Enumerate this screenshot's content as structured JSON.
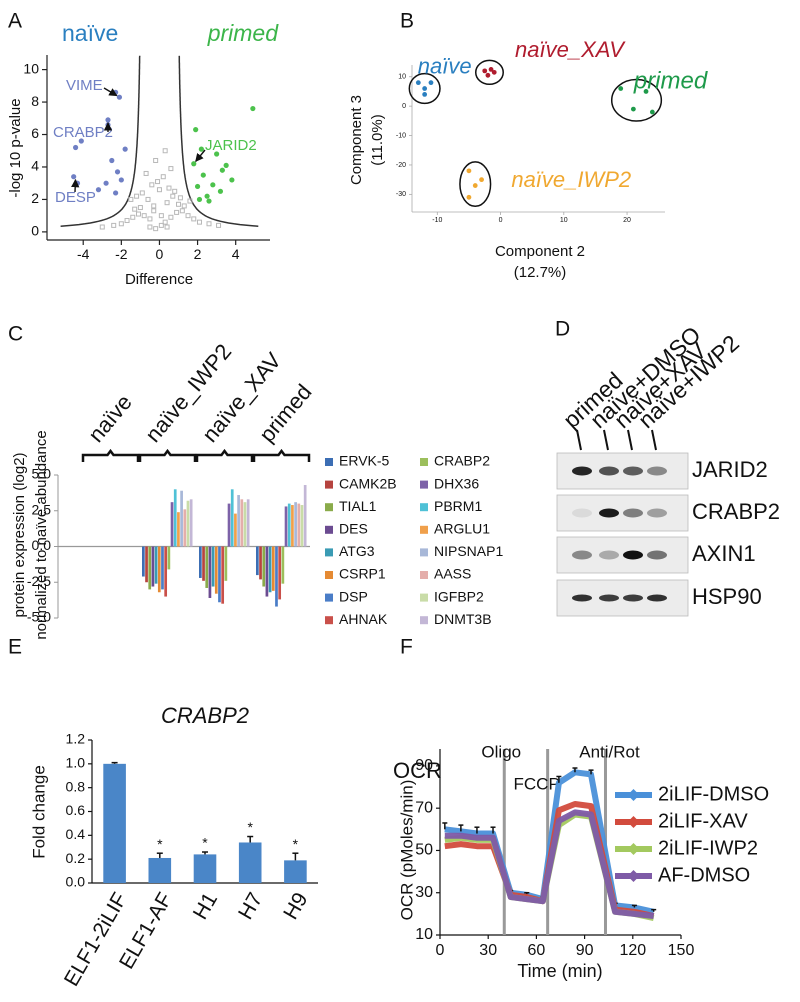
{
  "chart_data": [
    {
      "panel": "A",
      "type": "scatter",
      "group_labels": [
        "naïve",
        "primed"
      ],
      "group_colors": [
        "#2a7fc0",
        "#3cb54a"
      ],
      "xlabel": "Difference",
      "ylabel": "-log 10 p-value",
      "xlim": [
        -5.9,
        5.8
      ],
      "ylim": [
        -0.5,
        10.9
      ],
      "xticks": [
        -4,
        -2,
        0,
        2,
        4
      ],
      "yticks": [
        0,
        2,
        4,
        6,
        8,
        10
      ],
      "series": [
        {
          "color": "#b8b8b8",
          "marker": "open-square",
          "x": [
            -0.2,
            0.1,
            0.3,
            -0.5,
            0.6,
            -0.8,
            0.9,
            -1.1,
            1.2,
            -0.3,
            0.4,
            -0.6,
            0.7,
            -1.0,
            1.0,
            -1.4,
            1.5,
            0.0,
            -0.1,
            0.2,
            -0.4,
            0.5,
            -0.9,
            0.8,
            -1.3,
            1.3,
            -1.7,
            1.8,
            -2.0,
            2.1,
            -0.7,
            0.6,
            -0.2,
            0.3,
            -1.2,
            1.1,
            -2.4,
            2.6,
            -0.5,
            0.4,
            1.6,
            -1.5,
            -3.0,
            3.1,
            0.1,
            -0.3
          ],
          "values": [
            0.2,
            0.4,
            0.6,
            0.8,
            0.9,
            1.0,
            1.2,
            1.1,
            1.3,
            1.6,
            1.8,
            2.0,
            2.2,
            1.5,
            1.7,
            0.9,
            1.0,
            2.6,
            3.1,
            3.4,
            2.9,
            2.7,
            2.4,
            2.5,
            1.4,
            1.6,
            0.7,
            0.8,
            0.5,
            0.6,
            3.6,
            3.9,
            4.4,
            5.0,
            2.2,
            2.1,
            0.4,
            0.5,
            0.3,
            0.3,
            1.9,
            2.0,
            0.3,
            0.4,
            1.0,
            1.3
          ]
        },
        {
          "color": "#6f7fc4",
          "x": [
            -4.5,
            -4.3,
            -4.4,
            -4.1,
            -2.7,
            -2.7,
            -2.3,
            -2.1,
            -2.5,
            -2.2,
            -2.8,
            -2.0,
            -2.3,
            -3.2,
            -1.8
          ],
          "values": [
            3.4,
            3.0,
            5.2,
            5.6,
            6.9,
            6.6,
            8.6,
            8.3,
            4.4,
            3.7,
            3.0,
            3.2,
            2.4,
            2.6,
            5.1
          ]
        },
        {
          "color": "#4cc24c",
          "x": [
            1.8,
            2.0,
            2.3,
            2.5,
            2.8,
            3.0,
            3.2,
            3.5,
            3.8,
            2.2,
            2.6,
            4.9,
            2.1,
            1.9,
            3.3
          ],
          "values": [
            4.2,
            2.8,
            3.5,
            2.2,
            2.9,
            4.8,
            2.5,
            4.1,
            3.2,
            5.1,
            1.9,
            7.6,
            2.0,
            6.3,
            3.8
          ]
        }
      ],
      "annotations": [
        {
          "text": "VIME",
          "x": -2.1,
          "y": 8.3,
          "color": "#6f7fc4"
        },
        {
          "text": "CRABP2",
          "x": -2.7,
          "y": 6.9,
          "color": "#6f7fc4"
        },
        {
          "text": "DESP",
          "x": -4.4,
          "y": 3.4,
          "color": "#6f7fc4"
        },
        {
          "text": "JARID2",
          "x": 1.8,
          "y": 4.2,
          "color": "#4cc24c"
        }
      ]
    },
    {
      "panel": "B",
      "type": "scatter",
      "xlabel": [
        "Component 2",
        "(12.7%)"
      ],
      "ylabel": [
        "Component 3",
        "(11.0%)"
      ],
      "xlim": [
        -14,
        26
      ],
      "ylim": [
        -36,
        14
      ],
      "xticks": [
        -10,
        0,
        10,
        20
      ],
      "yticks": [
        10,
        0,
        -10,
        -20,
        -30
      ],
      "series": [
        {
          "name": "naïve",
          "color": "#2a7fc0",
          "x": [
            -13,
            -12,
            -11,
            -12
          ],
          "values": [
            8,
            6,
            8,
            4
          ]
        },
        {
          "name": "naïve_XAV",
          "color": "#b01c2e",
          "x": [
            -2.5,
            -1.5,
            -1,
            -2
          ],
          "values": [
            12,
            12.5,
            11.5,
            10.5
          ]
        },
        {
          "name": "primed",
          "color": "#1e9a4a",
          "x": [
            19,
            21,
            24,
            23
          ],
          "values": [
            6,
            -1,
            -2,
            5
          ]
        },
        {
          "name": "naïve_IWP2",
          "color": "#f0a830",
          "x": [
            -5,
            -4,
            -5,
            -3
          ],
          "values": [
            -22,
            -27,
            -31,
            -25
          ]
        }
      ]
    },
    {
      "panel": "C",
      "type": "bar",
      "ylabel": [
        "protein expression (log2)",
        "normalized to naïve abundance"
      ],
      "categories": [
        "naïve",
        "naïve_IWP2",
        "naïve_XAV",
        "primed"
      ],
      "ylim": [
        -5,
        5
      ],
      "yticks": [
        {
          "value": 5,
          "label": "5.0"
        },
        2.5,
        {
          "value": 0,
          "label": "0.0"
        },
        -2.5,
        {
          "value": -5,
          "label": "-5.0"
        }
      ],
      "series": [
        {
          "name": "ERVK-5",
          "color": "#3c6eb4",
          "values": [
            0,
            -2.1,
            -2.2,
            -2.0
          ]
        },
        {
          "name": "CAMK2B",
          "color": "#b6443f",
          "values": [
            0,
            -2.5,
            -2.4,
            -2.3
          ]
        },
        {
          "name": "TIAL1",
          "color": "#8aab4a",
          "values": [
            0,
            -3.0,
            -2.9,
            -2.8
          ]
        },
        {
          "name": "DES",
          "color": "#6b4b91",
          "values": [
            0,
            -2.8,
            -3.6,
            -3.5
          ]
        },
        {
          "name": "ATG3",
          "color": "#3a9bb4",
          "values": [
            0,
            -2.6,
            -2.8,
            -3.2
          ]
        },
        {
          "name": "CSRP1",
          "color": "#e58a33",
          "values": [
            0,
            -3.2,
            -3.3,
            -3.1
          ]
        },
        {
          "name": "DSP",
          "color": "#4a7dc7",
          "values": [
            0,
            -3.0,
            -3.9,
            -4.2
          ]
        },
        {
          "name": "AHNAK",
          "color": "#c9504a",
          "values": [
            0,
            -3.5,
            -4.0,
            -3.7
          ]
        },
        {
          "name": "CRABP2",
          "color": "#9cbf5c",
          "values": [
            0,
            -1.6,
            -2.4,
            -2.6
          ]
        },
        {
          "name": "DHX36",
          "color": "#7d62a8",
          "values": [
            0,
            3.1,
            3.0,
            2.8
          ]
        },
        {
          "name": "PBRM1",
          "color": "#4fc1d6",
          "values": [
            0,
            4.0,
            4.0,
            3.0
          ]
        },
        {
          "name": "ARGLU1",
          "color": "#f0a04b",
          "values": [
            0,
            2.4,
            2.3,
            2.9
          ]
        },
        {
          "name": "NIPSNAP1",
          "color": "#a8b8d8",
          "values": [
            0,
            3.9,
            3.6,
            3.1
          ]
        },
        {
          "name": "AASS",
          "color": "#e4aeab",
          "values": [
            0,
            2.6,
            3.3,
            3.0
          ]
        },
        {
          "name": "IGFBP2",
          "color": "#c9dca8",
          "values": [
            0,
            3.2,
            3.1,
            2.9
          ]
        },
        {
          "name": "DNMT3B",
          "color": "#c3b7d6",
          "values": [
            0,
            3.3,
            3.3,
            4.3
          ]
        }
      ]
    },
    {
      "panel": "D",
      "type": "blot",
      "lanes": [
        "primed",
        "naïve+DMSO",
        "naïve+XAV",
        "naïve+IWP2"
      ],
      "bands": [
        "JARID2",
        "CRABP2",
        "AXIN1",
        "HSP90"
      ]
    },
    {
      "panel": "E",
      "type": "bar",
      "title": "CRABP2",
      "ylabel": "Fold change",
      "categories": [
        "ELF1-2iLIF",
        "ELF1-AF",
        "H1",
        "H7",
        "H9"
      ],
      "values": [
        1,
        0.21,
        0.24,
        0.34,
        0.19
      ],
      "errors": [
        0.01,
        0.04,
        0.02,
        0.05,
        0.06
      ],
      "significance": [
        null,
        "*",
        "*",
        "*",
        "*"
      ],
      "color": "#4a86c8",
      "ylim": [
        0,
        1.2
      ],
      "yticks": [
        {
          "value": 0,
          "label": "0.0"
        },
        0.2,
        0.4,
        0.6,
        0.8,
        {
          "value": 1,
          "label": "1.0"
        },
        1.2
      ]
    },
    {
      "panel": "F",
      "type": "line",
      "title": "OCR",
      "xlabel": "Time (min)",
      "ylabel": "OCR (pMoles/min)",
      "xlim": [
        0,
        150
      ],
      "ylim": [
        10,
        98
      ],
      "xticks": [
        0,
        30,
        60,
        90,
        120,
        150
      ],
      "yticks": [
        10,
        30,
        50,
        70,
        90
      ],
      "events": [
        {
          "x": 40,
          "label": "Oligo"
        },
        {
          "x": 67,
          "label": "FCCP"
        },
        {
          "x": 103,
          "label": "Anti/Rot"
        }
      ],
      "x": [
        3,
        13,
        23,
        33,
        44,
        54,
        64,
        74,
        84,
        94,
        109,
        121,
        133
      ],
      "series": [
        {
          "name": "2iLIF-DMSO",
          "color": "#4a90d9",
          "values": [
            60,
            59,
            58,
            58,
            30,
            29,
            27,
            82,
            87,
            86,
            24,
            23,
            21
          ],
          "errors": [
            3,
            3,
            3,
            3,
            1,
            1,
            1,
            3,
            2,
            2,
            1,
            1,
            1
          ]
        },
        {
          "name": "2iLIF-XAV",
          "color": "#d24b3d",
          "values": [
            52,
            53,
            52,
            52,
            29,
            28,
            26,
            69,
            72,
            71,
            22,
            21,
            19
          ]
        },
        {
          "name": "2iLIF-IWP2",
          "color": "#a3c95f",
          "values": [
            55,
            56,
            55,
            55,
            28,
            27,
            26,
            62,
            67,
            66,
            21,
            20,
            18
          ]
        },
        {
          "name": "AF-DMSO",
          "color": "#7e5aa6",
          "values": [
            57,
            57,
            56,
            56,
            28,
            27,
            26,
            64,
            68,
            67,
            21,
            20,
            19
          ]
        }
      ]
    }
  ]
}
